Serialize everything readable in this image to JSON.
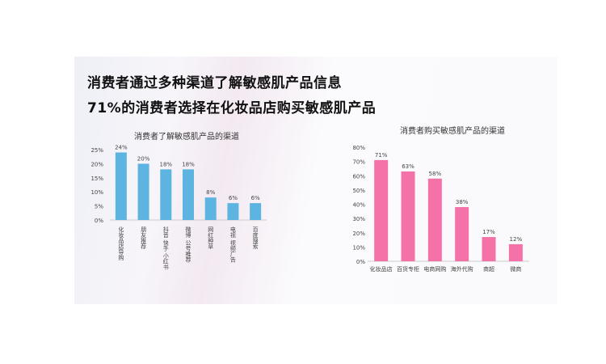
{
  "slide": {
    "headline_1": "消费者通过多种渠道了解敏感肌产品信息",
    "headline_2": "71%的消费者选择在化妆品店购买敏感肌产品"
  },
  "chart_data": [
    {
      "type": "bar",
      "title": "消费者了解敏感肌产品的渠道",
      "categories": [
        "化妆品店导购",
        "朋友推荐",
        "抖音 快手 小红书",
        "微博 公号推荐",
        "网红种草",
        "电视 视频广告",
        "百度搜索"
      ],
      "values": [
        24,
        20,
        18,
        18,
        8,
        6,
        6
      ],
      "data_labels": [
        "24%",
        "20%",
        "18%",
        "18%",
        "8%",
        "6%",
        "6%"
      ],
      "yticks": [
        "0%",
        "5%",
        "10%",
        "15%",
        "20%",
        "25%"
      ],
      "ylim": [
        0,
        25
      ],
      "color": "#5db4e0",
      "grid": false
    },
    {
      "type": "bar",
      "title": "消费者购买敏感肌产品的渠道",
      "categories": [
        "化妆品店",
        "百货专柜",
        "电商网购",
        "海外代购",
        "商超",
        "微商"
      ],
      "values": [
        71,
        63,
        58,
        38,
        17,
        12
      ],
      "data_labels": [
        "71%",
        "63%",
        "58%",
        "38%",
        "17%",
        "12%"
      ],
      "yticks": [
        "0%",
        "10%",
        "20%",
        "30%",
        "40%",
        "50%",
        "60%",
        "70%",
        "80%"
      ],
      "ylim": [
        0,
        80
      ],
      "color": "#f472a8",
      "grid": false
    }
  ]
}
